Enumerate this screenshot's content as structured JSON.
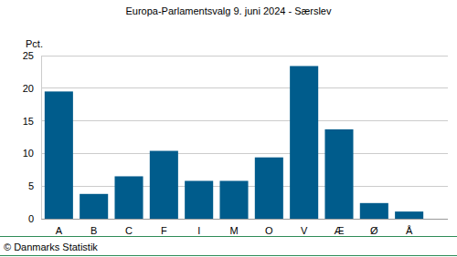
{
  "chart_data": {
    "type": "bar",
    "title": "Europa-Parlamentsvalg 9. juni 2024 - Særslev",
    "y_label": "Pct.",
    "source": "© Danmarks Statistik",
    "categories": [
      "A",
      "B",
      "C",
      "F",
      "I",
      "M",
      "O",
      "V",
      "Æ",
      "Ø",
      "Å"
    ],
    "values": [
      19.5,
      3.8,
      6.5,
      10.4,
      5.8,
      5.8,
      9.4,
      23.4,
      13.7,
      2.4,
      1.1
    ],
    "color": "#005c8c",
    "ylim": [
      0,
      25
    ],
    "yticks": [
      0,
      5,
      10,
      15,
      20,
      25
    ],
    "grid": true
  }
}
